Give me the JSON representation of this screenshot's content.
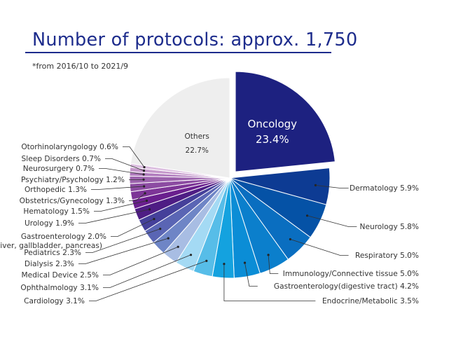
{
  "chart_data": {
    "type": "pie",
    "title": "Number of protocols: approx. 1,750",
    "subtitle": "*from 2016/10 to 2021/9",
    "slices": [
      {
        "label": "Oncology",
        "value": 23.4,
        "value_text": "23.4%",
        "color": "#1d2180",
        "exploded": true
      },
      {
        "label": "Dermatology",
        "value": 5.9,
        "value_text": "5.9%",
        "color": "#0d3b93"
      },
      {
        "label": "Neurology",
        "value": 5.8,
        "value_text": "5.8%",
        "color": "#0552a6"
      },
      {
        "label": "Respiratory",
        "value": 5.0,
        "value_text": "5.0%",
        "color": "#0a6ec0"
      },
      {
        "label": "Immunology/Connective tissue",
        "value": 5.0,
        "value_text": "5.0%",
        "color": "#0b7fcc"
      },
      {
        "label": "Gastroenterology(digestive tract)",
        "value": 4.2,
        "value_text": "4.2%",
        "color": "#0b8dd6"
      },
      {
        "label": "Endocrine/Metabolic",
        "value": 3.5,
        "value_text": "3.5%",
        "color": "#14a2df"
      },
      {
        "label": "Cardiology",
        "value": 3.1,
        "value_text": "3.1%",
        "color": "#57bde8"
      },
      {
        "label": "Ophthalmology",
        "value": 3.1,
        "value_text": "3.1%",
        "color": "#a4daf4"
      },
      {
        "label": "Medical Device",
        "value": 2.5,
        "value_text": "2.5%",
        "color": "#a8bde3"
      },
      {
        "label": "Dialysis",
        "value": 2.3,
        "value_text": "2.3%",
        "color": "#6e85c6"
      },
      {
        "label": "Pediatrics",
        "value": 2.3,
        "value_text": "2.3%",
        "color": "#5a65b4"
      },
      {
        "label": "Gastroenterology",
        "sublabel": "(liver, gallbladder, pancreas)",
        "value": 2.0,
        "value_text": "2.0%",
        "color": "#45409a"
      },
      {
        "label": "Urology",
        "value": 1.9,
        "value_text": "1.9%",
        "color": "#4e1d84"
      },
      {
        "label": "Hematology",
        "value": 1.5,
        "value_text": "1.5%",
        "color": "#6a1f8e"
      },
      {
        "label": "Obstetrics/Gynecology",
        "value": 1.3,
        "value_text": "1.3%",
        "color": "#7d3597"
      },
      {
        "label": "Orthopedic",
        "value": 1.3,
        "value_text": "1.3%",
        "color": "#8c4ca2"
      },
      {
        "label": "Psychiatry/Psychology",
        "value": 1.2,
        "value_text": "1.2%",
        "color": "#9c63ad"
      },
      {
        "label": "Neurosurgery",
        "value": 0.7,
        "value_text": "0.7%",
        "color": "#b07bbd"
      },
      {
        "label": "Sleep Disorders",
        "value": 0.7,
        "value_text": "0.7%",
        "color": "#c598cb"
      },
      {
        "label": "Otorhinolaryngology",
        "value": 0.6,
        "value_text": "0.6%",
        "color": "#dcbfe0"
      },
      {
        "label": "Others",
        "value": 22.7,
        "value_text": "22.7%",
        "color": "#eeeeee"
      }
    ]
  }
}
